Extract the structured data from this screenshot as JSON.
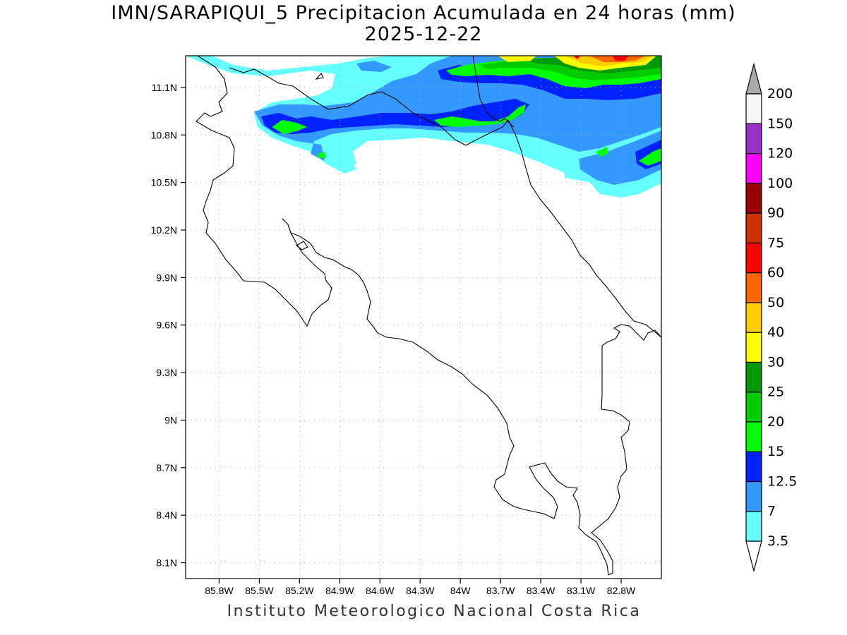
{
  "title": {
    "line1": "IMN/SARAPIQUI_5 Precipitacion Acumulada en 24 horas (mm)",
    "line2": "2025-12-22"
  },
  "footer": "Instituto Meteorologico Nacional Costa Rica",
  "map": {
    "lon_range": [
      -86.05,
      -82.5
    ],
    "lat_range": [
      8.0,
      11.3
    ],
    "lon_ticks": [
      {
        "value": -85.8,
        "label": "85.8W"
      },
      {
        "value": -85.5,
        "label": "85.5W"
      },
      {
        "value": -85.2,
        "label": "85.2W"
      },
      {
        "value": -84.9,
        "label": "84.9W"
      },
      {
        "value": -84.6,
        "label": "84.6W"
      },
      {
        "value": -84.3,
        "label": "84.3W"
      },
      {
        "value": -84.0,
        "label": "84W"
      },
      {
        "value": -83.7,
        "label": "83.7W"
      },
      {
        "value": -83.4,
        "label": "83.4W"
      },
      {
        "value": -83.1,
        "label": "83.1W"
      },
      {
        "value": -82.8,
        "label": "82.8W"
      }
    ],
    "lat_ticks": [
      {
        "value": 11.1,
        "label": "11.1N"
      },
      {
        "value": 10.8,
        "label": "10.8N"
      },
      {
        "value": 10.5,
        "label": "10.5N"
      },
      {
        "value": 10.2,
        "label": "10.2N"
      },
      {
        "value": 9.9,
        "label": "9.9N"
      },
      {
        "value": 9.6,
        "label": "9.6N"
      },
      {
        "value": 9.3,
        "label": "9.3N"
      },
      {
        "value": 9.0,
        "label": "9N"
      },
      {
        "value": 8.7,
        "label": "8.7N"
      },
      {
        "value": 8.4,
        "label": "8.4N"
      },
      {
        "value": 8.1,
        "label": "8.1N"
      }
    ],
    "gridlines": true
  },
  "colorbar": {
    "levels": [
      "3.5",
      "7",
      "12.5",
      "15",
      "20",
      "25",
      "30",
      "40",
      "50",
      "60",
      "75",
      "90",
      "100",
      "120",
      "150",
      "200"
    ],
    "colors": [
      "#66ffff",
      "#3399ff",
      "#0022ff",
      "#00ff00",
      "#00cc00",
      "#009900",
      "#ffff00",
      "#ffcc00",
      "#ff6600",
      "#ff0000",
      "#cc3300",
      "#990000",
      "#ff00ff",
      "#9933cc",
      "#f5f5f5"
    ],
    "under_color": "#ffffff",
    "over_color": "#aaaaaa"
  }
}
